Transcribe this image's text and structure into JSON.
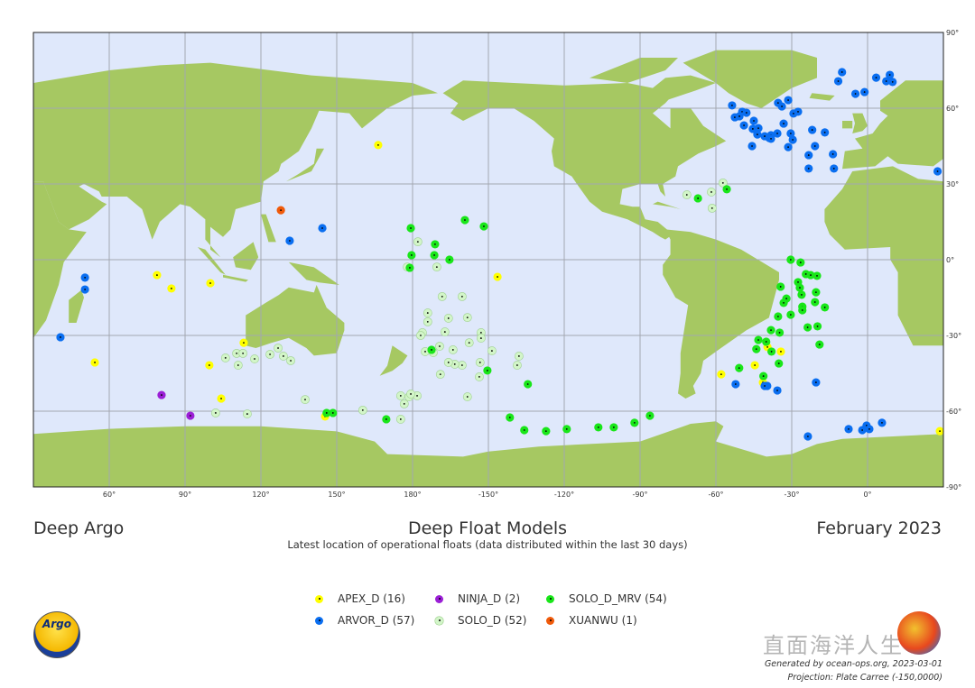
{
  "header": {
    "left_title": "Deep Argo",
    "main_title": "Deep Float Models",
    "subtitle": "Latest location of operational floats (data distributed within the last 30 days)",
    "right_title": "February 2023"
  },
  "footer": {
    "generated": "Generated by ocean-ops.org, 2023-03-01",
    "projection": "Projection: Plate Carree (-150,0000)",
    "logo_text": "Argo",
    "watermark_text": "直面海洋人生"
  },
  "map_data": {
    "projection": "Plate Carree",
    "central_longitude": -150,
    "grid_spacing_deg": 30,
    "colors": {
      "ocean": "#dfe8fb",
      "land": "#a6c862",
      "grid": "#a3a7b0"
    },
    "lat_labels": [
      "90°",
      "60°",
      "30°",
      "0°",
      "-30°",
      "-60°",
      "-90°"
    ],
    "lon_labels": [
      "60°",
      "90°",
      "120°",
      "150°",
      "180°",
      "-150°",
      "-120°",
      "-90°",
      "-60°",
      "-30°",
      "0°"
    ],
    "legend": [
      {
        "label": "APEX_D (16)",
        "key": "APEX_D",
        "color": "#ffff00"
      },
      {
        "label": "NINJA_D (2)",
        "key": "NINJA_D",
        "color": "#9b1fd6"
      },
      {
        "label": "SOLO_D_MRV (54)",
        "key": "SOLO_D_MRV",
        "color": "#19e619"
      },
      {
        "label": "ARVOR_D (57)",
        "key": "ARVOR_D",
        "color": "#0a6ef0"
      },
      {
        "label": "SOLO_D (52)",
        "key": "SOLO_D",
        "color": "#d2f5c8"
      },
      {
        "label": "XUANWU (1)",
        "key": "XUANWU",
        "color": "#f05a0a"
      }
    ],
    "floats": {
      "APEX_D": [
        [
          166.4,
          45.4
        ],
        [
          78.9,
          -6.1
        ],
        [
          84.6,
          -11.4
        ],
        [
          100,
          -9.3
        ],
        [
          113.2,
          -32.9
        ],
        [
          54.3,
          -40.7
        ],
        [
          99.6,
          -41.8
        ],
        [
          104.3,
          -55
        ],
        [
          145.4,
          -62.1
        ],
        [
          -146.4,
          -6.8
        ],
        [
          -57.9,
          -45.4
        ],
        [
          -44.6,
          -41.8
        ],
        [
          -41.4,
          -48.6
        ],
        [
          -39.6,
          -34.6
        ],
        [
          -34.3,
          -36.4
        ],
        [
          28.6,
          -67.9
        ]
      ],
      "NINJA_D": [
        [
          80.7,
          -53.6
        ],
        [
          92.1,
          -61.8
        ]
      ],
      "XUANWU": [
        [
          127.9,
          19.6
        ]
      ],
      "ARVOR_D": [
        [
          -53.6,
          61.1
        ],
        [
          -52.5,
          56.4
        ],
        [
          -50.7,
          56.8
        ],
        [
          -49.6,
          58.6
        ],
        [
          -47.9,
          58.2
        ],
        [
          -48.9,
          53.2
        ],
        [
          -45,
          55
        ],
        [
          -45.4,
          51.8
        ],
        [
          -43.2,
          52.1
        ],
        [
          -43.6,
          49.6
        ],
        [
          -40.7,
          48.9
        ],
        [
          -38.9,
          48.2
        ],
        [
          -38.2,
          49.3
        ],
        [
          -38.2,
          47.9
        ],
        [
          -35.7,
          50
        ],
        [
          -45.7,
          45
        ],
        [
          -35.4,
          62.1
        ],
        [
          -33.9,
          60.7
        ],
        [
          -31.4,
          63.2
        ],
        [
          -33.2,
          53.9
        ],
        [
          -30.4,
          50
        ],
        [
          -29.6,
          47.5
        ],
        [
          -31.4,
          44.6
        ],
        [
          -29.3,
          57.9
        ],
        [
          -27.5,
          58.6
        ],
        [
          -21.9,
          51.4
        ],
        [
          -16.9,
          50.4
        ],
        [
          -20.8,
          45
        ],
        [
          -23.3,
          41.4
        ],
        [
          -13.7,
          41.8
        ],
        [
          -23.3,
          36.1
        ],
        [
          -13.3,
          36.1
        ],
        [
          -11.6,
          70.7
        ],
        [
          -10.1,
          74.3
        ],
        [
          -4.8,
          65.7
        ],
        [
          -1.2,
          66.4
        ],
        [
          3.4,
          72.1
        ],
        [
          7.4,
          70.7
        ],
        [
          8.8,
          73.2
        ],
        [
          9.9,
          70.4
        ],
        [
          27.7,
          35
        ],
        [
          131.4,
          7.5
        ],
        [
          144.3,
          12.5
        ],
        [
          50.4,
          -7.1
        ],
        [
          50.4,
          -11.8
        ],
        [
          40.7,
          -30.7
        ],
        [
          -52.2,
          -49.3
        ],
        [
          -39.7,
          -50
        ],
        [
          -35.7,
          -51.8
        ],
        [
          -40.7,
          -50
        ],
        [
          -20.4,
          -48.6
        ],
        [
          -23.6,
          -70
        ],
        [
          -7.5,
          -67.1
        ],
        [
          -2.1,
          -67.5
        ],
        [
          -0.4,
          -65.7
        ],
        [
          0.7,
          -67.1
        ],
        [
          5.7,
          -64.6
        ]
      ],
      "SOLO_D_MRV": [
        [
          179.3,
          12.5
        ],
        [
          179.6,
          1.8
        ],
        [
          178.9,
          -3.2
        ],
        [
          -171.1,
          6.1
        ],
        [
          -171.4,
          1.8
        ],
        [
          -165.4,
          0
        ],
        [
          -159.3,
          15.7
        ],
        [
          -151.8,
          13.2
        ],
        [
          -172.5,
          -35.7
        ],
        [
          -150.4,
          -43.9
        ],
        [
          -134.4,
          -49.3
        ],
        [
          -141.5,
          -62.5
        ],
        [
          -135.8,
          -67.5
        ],
        [
          -127.2,
          -67.9
        ],
        [
          -119,
          -67.1
        ],
        [
          -106.5,
          -66.4
        ],
        [
          -100.4,
          -66.4
        ],
        [
          -92.2,
          -64.6
        ],
        [
          -86.1,
          -61.8
        ],
        [
          169.6,
          -63.2
        ],
        [
          146,
          -60.7
        ],
        [
          148.5,
          -60.7
        ],
        [
          -55.7,
          27.9
        ],
        [
          -67.1,
          24.3
        ],
        [
          -30.4,
          0
        ],
        [
          -26.5,
          -1.1
        ],
        [
          -22.5,
          -6.1
        ],
        [
          -20,
          -6.4
        ],
        [
          -34.4,
          -10.7
        ],
        [
          -27.5,
          -8.9
        ],
        [
          -26.8,
          -11.1
        ],
        [
          -26.1,
          -13.9
        ],
        [
          -20.4,
          -12.9
        ],
        [
          -32.1,
          -15.4
        ],
        [
          -33.2,
          -17.1
        ],
        [
          -20.8,
          -16.8
        ],
        [
          -25.8,
          -18.6
        ],
        [
          -25.8,
          -20
        ],
        [
          -16.9,
          -18.9
        ],
        [
          -30.4,
          -21.8
        ],
        [
          -35.4,
          -22.5
        ],
        [
          -23.7,
          -26.8
        ],
        [
          -19.8,
          -26.4
        ],
        [
          -38.2,
          -27.9
        ],
        [
          -34.8,
          -28.9
        ],
        [
          -19,
          -33.6
        ],
        [
          -43.2,
          -31.8
        ],
        [
          -40.1,
          -32.5
        ],
        [
          -44,
          -35.4
        ],
        [
          -38,
          -36.4
        ],
        [
          -35.1,
          -41.1
        ],
        [
          -50.8,
          -42.9
        ],
        [
          -41.2,
          -46.1
        ],
        [
          -24.4,
          -5.7
        ]
      ],
      "SOLO_D": [
        [
          -177.9,
          7.1
        ],
        [
          177.9,
          -2.9
        ],
        [
          -170.4,
          -2.9
        ],
        [
          -168.3,
          -14.6
        ],
        [
          -160.4,
          -14.6
        ],
        [
          -174,
          -21.1
        ],
        [
          -174,
          -24.6
        ],
        [
          -165.8,
          -23.2
        ],
        [
          -158.3,
          -22.9
        ],
        [
          -176.1,
          -28.9
        ],
        [
          -167.2,
          -28.6
        ],
        [
          -164,
          -35.7
        ],
        [
          -157.6,
          -32.9
        ],
        [
          -152.9,
          -28.9
        ],
        [
          -152.9,
          -31.1
        ],
        [
          -148.6,
          -36.1
        ],
        [
          -153.3,
          -40.7
        ],
        [
          -160.4,
          -41.8
        ],
        [
          -163.3,
          -41.4
        ],
        [
          -169.3,
          -34.3
        ],
        [
          -175,
          -36.4
        ],
        [
          -169,
          -45.4
        ],
        [
          -158.3,
          -54.3
        ],
        [
          -137.9,
          -38.2
        ],
        [
          -138.6,
          -41.8
        ],
        [
          106,
          -38.9
        ],
        [
          110.4,
          -37.1
        ],
        [
          112.9,
          -37.1
        ],
        [
          111,
          -41.8
        ],
        [
          117.5,
          -39.3
        ],
        [
          123.6,
          -37.5
        ],
        [
          126.8,
          -35
        ],
        [
          128.9,
          -38.2
        ],
        [
          131.8,
          -40
        ],
        [
          137.5,
          -55.4
        ],
        [
          102.1,
          -60.7
        ],
        [
          114.6,
          -61.1
        ],
        [
          160.3,
          -59.6
        ],
        [
          175.3,
          -53.9
        ],
        [
          176.7,
          -57.1
        ],
        [
          178.6,
          -54.3
        ],
        [
          -178.2,
          -53.9
        ],
        [
          175.3,
          -63.2
        ],
        [
          -71.5,
          25.7
        ],
        [
          -57.2,
          30.4
        ],
        [
          -61.8,
          26.8
        ],
        [
          -61.5,
          20.4
        ],
        [
          -153.6,
          -46.4
        ],
        [
          -171.8,
          -36.8
        ],
        [
          -176.8,
          -30
        ],
        [
          -165.8,
          -40.7
        ],
        [
          179.3,
          -53.2
        ]
      ]
    }
  }
}
